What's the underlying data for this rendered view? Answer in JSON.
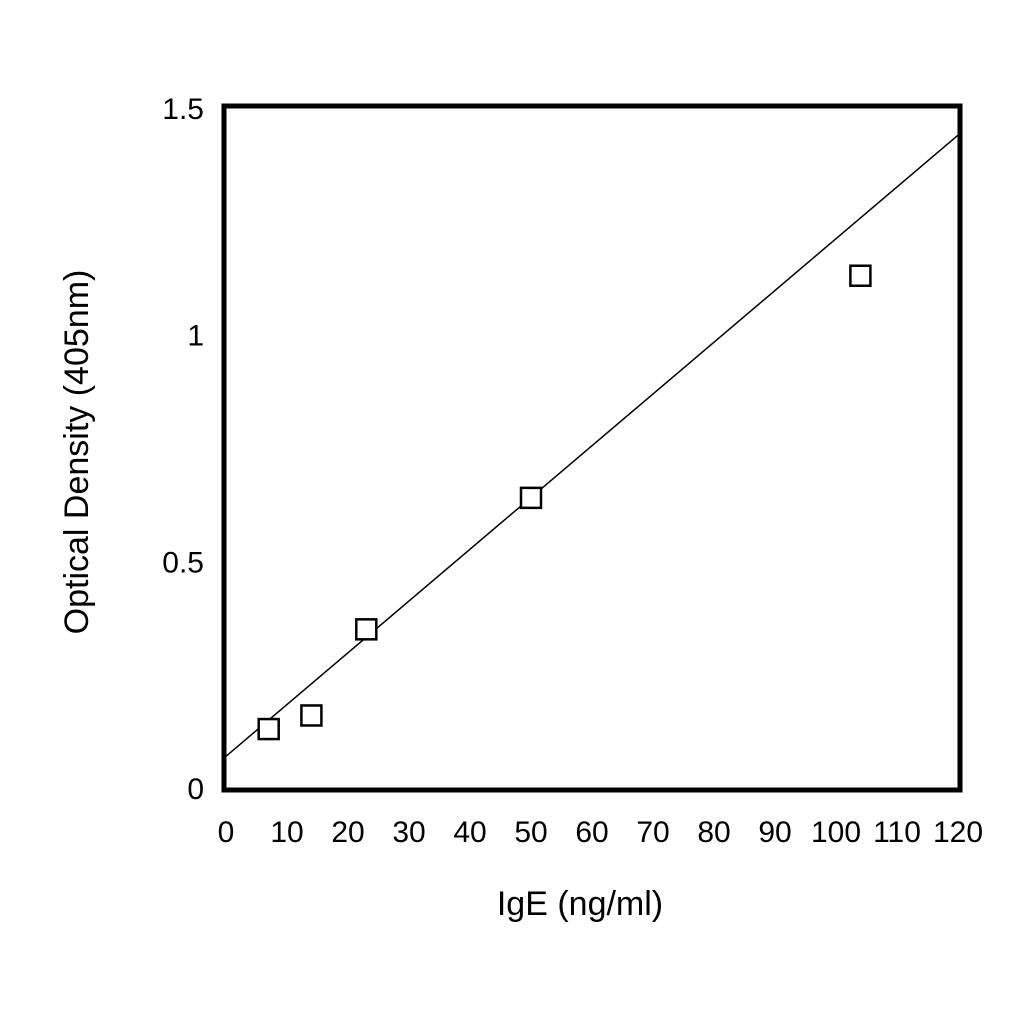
{
  "chart_data": {
    "type": "scatter",
    "title": "",
    "xlabel": "IgE (ng/ml)",
    "ylabel": "Optical Density (405nm)",
    "xlim": [
      0,
      120
    ],
    "ylim": [
      0,
      1.5
    ],
    "xticks": [
      "0",
      "10",
      "20",
      "30",
      "40",
      "50",
      "60",
      "70",
      "80",
      "90",
      "100",
      "110",
      "120"
    ],
    "yticks": [
      "0",
      "0.5",
      "1",
      "1.5"
    ],
    "grid": false,
    "legend": "none",
    "marker": "open-square",
    "series": [
      {
        "x": [
          7,
          14,
          23,
          50,
          104
        ],
        "y": [
          0.13,
          0.16,
          0.35,
          0.64,
          1.13
        ]
      }
    ],
    "fit_line": {
      "x": [
        0,
        120
      ],
      "y": [
        0.07,
        1.44
      ]
    }
  }
}
